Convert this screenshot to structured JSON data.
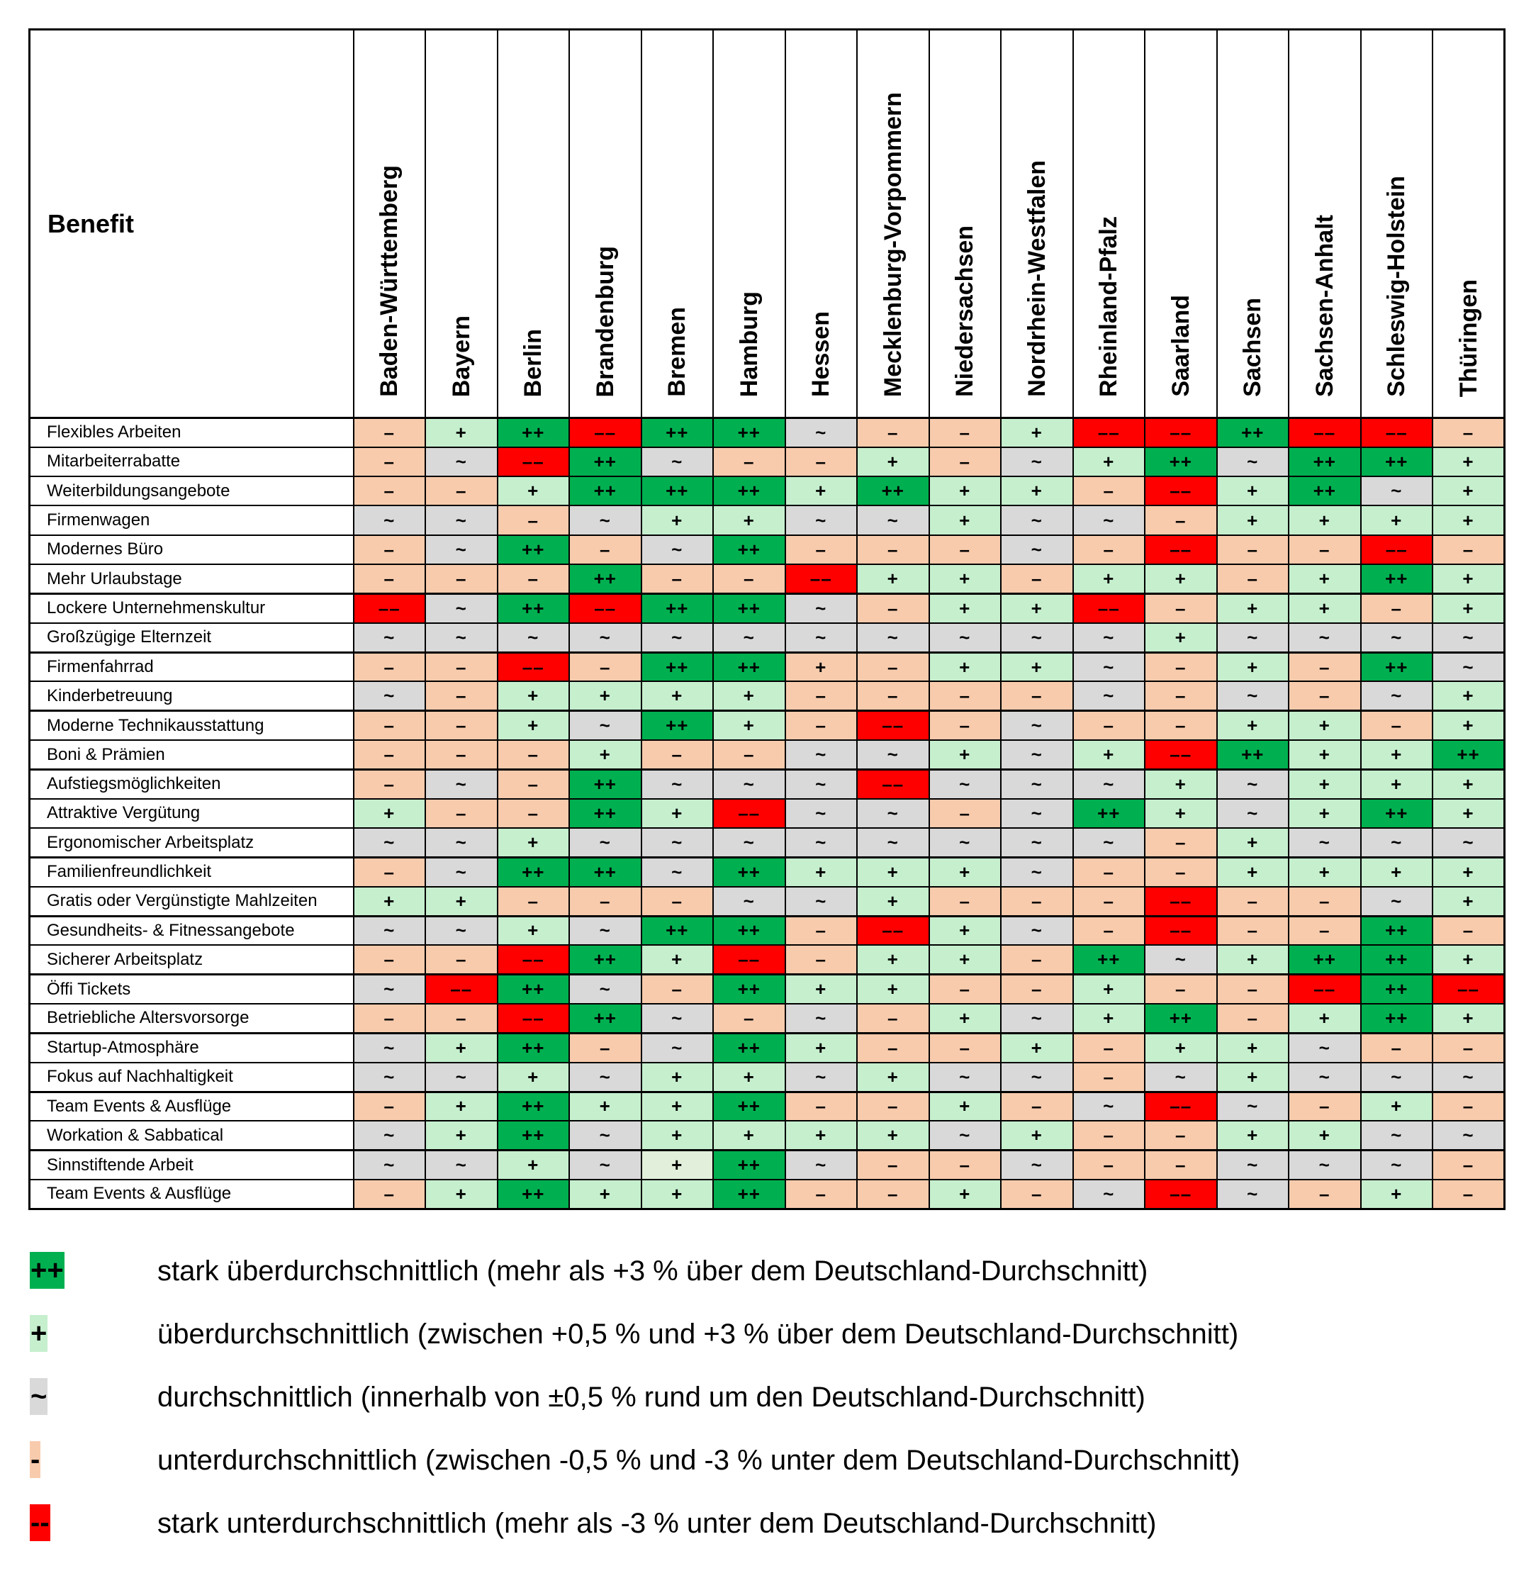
{
  "table": {
    "corner_header": "Benefit",
    "columns": [
      "Baden-Württemberg",
      "Bayern",
      "Berlin",
      "Brandenburg",
      "Bremen",
      "Hamburg",
      "Hessen",
      "Mecklenburg-Vorpommern",
      "Niedersachsen",
      "Nordrhein-Westfalen",
      "Rheinland-Pfalz",
      "Saarland",
      "Sachsen",
      "Sachsen-Anhalt",
      "Schleswig-Holstein",
      "Thüringen"
    ],
    "rows": [
      {
        "label": "Flexibles Arbeiten",
        "values": [
          "-",
          "+",
          "++",
          "--",
          "++",
          "++",
          "~",
          "-",
          "-",
          "+",
          "--",
          "--",
          "++",
          "--",
          "--",
          "-"
        ]
      },
      {
        "label": "Mitarbeiterrabatte",
        "values": [
          "-",
          "~",
          "--",
          "++",
          "~",
          "-",
          "-",
          "+",
          "-",
          "~",
          "+",
          "++",
          "~",
          "++",
          "++",
          "+"
        ]
      },
      {
        "label": "Weiterbildungsangebote",
        "values": [
          "-",
          "-",
          "+",
          "++",
          "++",
          "++",
          "+",
          "++",
          "+",
          "+",
          "-",
          "--",
          "+",
          "++",
          "~",
          "+"
        ]
      },
      {
        "label": "Firmenwagen",
        "values": [
          "~",
          "~",
          "-",
          "~",
          "+",
          "+",
          "~",
          "~",
          "+",
          "~",
          "~",
          "-",
          "+",
          "+",
          "+",
          "+"
        ]
      },
      {
        "label": "Modernes Büro",
        "values": [
          "-",
          "~",
          "++",
          "-",
          "~",
          "++",
          "-",
          "-",
          "-",
          "~",
          "-",
          "--",
          "-",
          "-",
          "--",
          "-"
        ]
      },
      {
        "label": "Mehr Urlaubstage",
        "values": [
          "-",
          "-",
          "-",
          "++",
          "-",
          "-",
          "--",
          "+",
          "+",
          "-",
          "+",
          "+",
          "-",
          "+",
          "++",
          "+"
        ]
      },
      {
        "label": "Lockere Unternehmenskultur",
        "values": [
          "--",
          "~",
          "++",
          "--",
          "++",
          "++",
          "~",
          "-",
          "+",
          "+",
          "--",
          "-",
          "+",
          "+",
          "-",
          "+"
        ]
      },
      {
        "label": "Großzügige Elternzeit",
        "values": [
          "~",
          "~",
          "~",
          "~",
          "~",
          "~",
          "~",
          "~",
          "~",
          "~",
          "~",
          "+",
          "~",
          "~",
          "~",
          "~"
        ]
      },
      {
        "label": "Firmenfahrrad",
        "values": [
          "-",
          "-",
          "--",
          "-",
          "++",
          "++",
          "+",
          "-",
          "+",
          "+",
          "~",
          "-",
          "+",
          "-",
          "++",
          "~"
        ]
      },
      {
        "label": "Kinderbetreuung",
        "values": [
          "~",
          "-",
          "+",
          "+",
          "+",
          "+",
          "-",
          "-",
          "-",
          "-",
          "~",
          "-",
          "~",
          "-",
          "~",
          "+"
        ]
      },
      {
        "label": "Moderne Technikausstattung",
        "values": [
          "-",
          "-",
          "+",
          "~",
          "++",
          "+",
          "-",
          "--",
          "-",
          "~",
          "-",
          "-",
          "+",
          "+",
          "-",
          "+"
        ]
      },
      {
        "label": "Boni & Prämien",
        "values": [
          "-",
          "-",
          "-",
          "+",
          "-",
          "-",
          "~",
          "~",
          "+",
          "~",
          "+",
          "--",
          "++",
          "+",
          "+",
          "++"
        ]
      },
      {
        "label": "Aufstiegsmöglichkeiten",
        "values": [
          "-",
          "~",
          "-",
          "++",
          "~",
          "~",
          "~",
          "--",
          "~",
          "~",
          "~",
          "+",
          "~",
          "+",
          "+",
          "+"
        ]
      },
      {
        "label": "Attraktive Vergütung",
        "values": [
          "+",
          "-",
          "-",
          "++",
          "+",
          "--",
          "~",
          "~",
          "-",
          "~",
          "++",
          "+",
          "~",
          "+",
          "++",
          "+"
        ]
      },
      {
        "label": "Ergonomischer Arbeitsplatz",
        "values": [
          "~",
          "~",
          "+",
          "~",
          "~",
          "~",
          "~",
          "~",
          "~",
          "~",
          "~",
          "-",
          "+",
          "~",
          "~",
          "~"
        ]
      },
      {
        "label": "Familienfreundlichkeit",
        "values": [
          "-",
          "~",
          "++",
          "++",
          "~",
          "++",
          "+",
          "+",
          "+",
          "~",
          "-",
          "-",
          "+",
          "+",
          "+",
          "+"
        ]
      },
      {
        "label": "Gratis oder Vergünstigte Mahlzeiten",
        "values": [
          "+",
          "+",
          "-",
          "-",
          "-",
          "~",
          "~",
          "+",
          "-",
          "-",
          "-",
          "--",
          "-",
          "-",
          "~",
          "+"
        ]
      },
      {
        "label": "Gesundheits- & Fitnessangebote",
        "values": [
          "~",
          "~",
          "+",
          "~",
          "++",
          "++",
          "-",
          "--",
          "+",
          "~",
          "-",
          "--",
          "-",
          "-",
          "++",
          "-"
        ]
      },
      {
        "label": "Sicherer Arbeitsplatz",
        "values": [
          "-",
          "-",
          "--",
          "++",
          "+",
          "--",
          "-",
          "+",
          "+",
          "-",
          "++",
          "~",
          "+",
          "++",
          "++",
          "+"
        ]
      },
      {
        "label": "Öffi Tickets",
        "values": [
          "~",
          "--",
          "++",
          "~",
          "-",
          "++",
          "+",
          "+",
          "-",
          "-",
          "+",
          "-",
          "-",
          "--",
          "++",
          "--"
        ]
      },
      {
        "label": "Betriebliche Altersvorsorge",
        "values": [
          "-",
          "-",
          "--",
          "++",
          "~",
          "-",
          "~",
          "-",
          "+",
          "~",
          "+",
          "++",
          "-",
          "+",
          "++",
          "+"
        ]
      },
      {
        "label": "Startup-Atmosphäre",
        "values": [
          "~",
          "+",
          "++",
          "-",
          "~",
          "++",
          "+",
          "-",
          "-",
          "+",
          "-",
          "+",
          "+",
          "~",
          "-",
          "-"
        ]
      },
      {
        "label": "Fokus auf Nachhaltigkeit",
        "values": [
          "~",
          "~",
          "+",
          "~",
          "+",
          "+",
          "~",
          "+",
          "~",
          "~",
          "-",
          "~",
          "+",
          "~",
          "~",
          "~"
        ]
      },
      {
        "label": "Team Events & Ausflüge",
        "values": [
          "-",
          "+",
          "++",
          "+",
          "+",
          "++",
          "-",
          "-",
          "+",
          "-",
          "~",
          "--",
          "~",
          "-",
          "+",
          "-"
        ]
      },
      {
        "label": "Workation & Sabbatical",
        "values": [
          "~",
          "+",
          "++",
          "~",
          "+",
          "+",
          "+",
          "+",
          "~",
          "+",
          "-",
          "-",
          "+",
          "+",
          "~",
          "~"
        ]
      },
      {
        "label": "Sinnstiftende Arbeit",
        "values": [
          "~",
          "~",
          "+",
          "~",
          "+",
          "++",
          "~",
          "-",
          "-",
          "~",
          "-",
          "-",
          "~",
          "~",
          "~",
          "-"
        ]
      },
      {
        "label": "Team Events & Ausflüge",
        "values": [
          "-",
          "+",
          "++",
          "+",
          "+",
          "++",
          "-",
          "-",
          "+",
          "-",
          "~",
          "--",
          "~",
          "-",
          "+",
          "-"
        ]
      }
    ],
    "cell_overrides": [
      {
        "row": 25,
        "col": 4,
        "background": "#E2EFDA"
      },
      {
        "row": 8,
        "col": 6,
        "background": "#F8CBAD"
      }
    ],
    "thick_top_rows": [
      6,
      8,
      10,
      12,
      15,
      17,
      19,
      21,
      23,
      25
    ]
  },
  "value_colors": {
    "++": "#00B050",
    "+": "#C6EFCE",
    "~": "#D9D9D9",
    "-": "#F8CBAD",
    "--": "#FF0000",
    "pale_green": "#E2EFDA"
  },
  "legend": {
    "items": [
      {
        "symbol": "++",
        "text": "stark überdurchschnittlich (mehr als +3 % über dem Deutschland-Durchschnitt)"
      },
      {
        "symbol": "+",
        "text": "überdurchschnittlich (zwischen +0,5 % und +3 % über dem Deutschland-Durchschnitt)"
      },
      {
        "symbol": "~",
        "text": "durchschnittlich (innerhalb von ±0,5 % rund um den Deutschland-Durchschnitt)"
      },
      {
        "symbol": "-",
        "text": "unterdurchschnittlich (zwischen -0,5 % und -3 % unter dem Deutschland-Durchschnitt)"
      },
      {
        "symbol": "--",
        "text": "stark unterdurchschnittlich (mehr als -3 % unter dem Deutschland-Durchschnitt)"
      }
    ]
  }
}
